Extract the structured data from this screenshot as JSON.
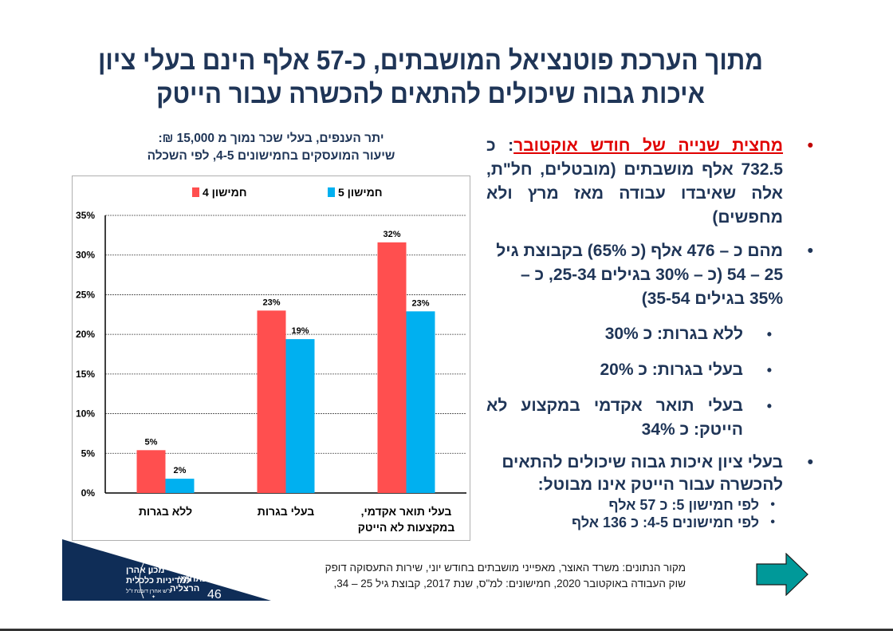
{
  "slide": {
    "title_line1": "מתוך הערכת פוטנציאל המושבתים, כ-57 אלף הינם בעלי ציון",
    "title_line2": "איכות גבוה שיכולים להתאים להכשרה עבור הייטק",
    "page_number": "46",
    "logo": {
      "line1": "מכון אהרן",
      "line2": "למדיניות כלכלית",
      "line3": "ע\"ש אהרן דובנת ז\"ל",
      "line4": "הבינתחומי",
      "line5": "הרצליה"
    },
    "source_line1": "מקור הנתונים: משרד האוצר, מאפייני מושבתים בחודש יוני, שירות התעסוקה דופק",
    "source_line2": "שוק העבודה באוקטובר 2020, חמישונים: למ\"ס, שנת 2017, קבוצת גיל 25 – 34,",
    "next_arrow_icon": "arrow-right-icon"
  },
  "bullets": {
    "b1_highlight": "מחצית שנייה של חודש אוקטובר",
    "b1_rest": ": כ 732.5 אלף מושבתים (מובטלים, חל\"ת, אלה שאיבדו עבודה מאז מרץ ולא מחפשים)",
    "b2": "מהם כ – 476 אלף (כ 65%) בקבוצת גיל 25 – 54 (כ – 30% בגילים 25-34, כ – 35% בגילים 35-54)",
    "sub": [
      "ללא בגרות: כ  30%",
      "בעלי בגרות: כ 20%",
      "בעלי תואר אקדמי במקצוע לא הייטק: כ 34%"
    ],
    "b3": "בעלי ציון איכות גבוה שיכולים להתאים להכשרה עבור הייטק אינו מבוטל:",
    "b3_sub": [
      "לפי חמישון 5: כ 57 אלף",
      "לפי חמישונים 4-5:  כ 136  אלף"
    ],
    "bullet_glyph": "•"
  },
  "chart_data": {
    "type": "bar",
    "title_line1": "יתר הענפים, בעלי שכר נמוך מ 15,000 ₪:",
    "title_line2": "שיעור המועסקים בחמישונים 4-5, לפי השכלה",
    "categories": [
      "ללא בגרות",
      "בעלי בגרות",
      "בעלי תואר אקדמי, במקצעות לא הייטק"
    ],
    "category_lines": [
      [
        "ללא בגרות"
      ],
      [
        "בעלי בגרות"
      ],
      [
        "בעלי תואר אקדמי,",
        "במקצעות לא הייטק"
      ]
    ],
    "series": [
      {
        "name": "חמישון 4",
        "color": "#ff4f4f",
        "values": [
          5.4,
          23.0,
          31.6
        ],
        "labels": [
          "5%",
          "23%",
          "32%"
        ]
      },
      {
        "name": "חמישון 5",
        "color": "#00b0f0",
        "values": [
          1.8,
          19.4,
          22.9
        ],
        "labels": [
          "2%",
          "19%",
          "23%"
        ]
      }
    ],
    "yticks": [
      "0%",
      "5%",
      "10%",
      "15%",
      "20%",
      "25%",
      "30%",
      "35%"
    ],
    "ylim": [
      0,
      35
    ],
    "ystep": 5,
    "grid": true,
    "legend": "top",
    "xlabel": "",
    "ylabel": ""
  }
}
